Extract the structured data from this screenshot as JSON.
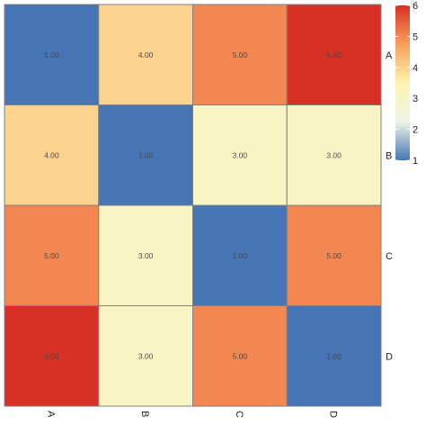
{
  "chart_data": {
    "type": "heatmap",
    "columns": [
      "A",
      "B",
      "C",
      "D"
    ],
    "rows": [
      "A",
      "B",
      "C",
      "D"
    ],
    "values": [
      [
        1,
        4,
        5,
        6
      ],
      [
        4,
        1,
        3,
        3
      ],
      [
        5,
        3,
        1,
        5
      ],
      [
        6,
        3,
        5,
        1
      ]
    ],
    "cell_labels": [
      [
        "1.00",
        "4.00",
        "5.00",
        "6.00"
      ],
      [
        "4.00",
        "1.00",
        "3.00",
        "3.00"
      ],
      [
        "5.00",
        "3.00",
        "1.00",
        "5.00"
      ],
      [
        "6.00",
        "3.00",
        "5.00",
        "1.00"
      ]
    ],
    "color_range": [
      1,
      6
    ],
    "color_stops": [
      "#4575b4",
      "#edf5e3",
      "#fff3b0",
      "#f99d5b",
      "#d73027"
    ],
    "legend": {
      "position": "top-right",
      "ticks": [
        "1",
        "2",
        "3",
        "4",
        "5",
        "6"
      ]
    },
    "grid_color": "#808080"
  }
}
